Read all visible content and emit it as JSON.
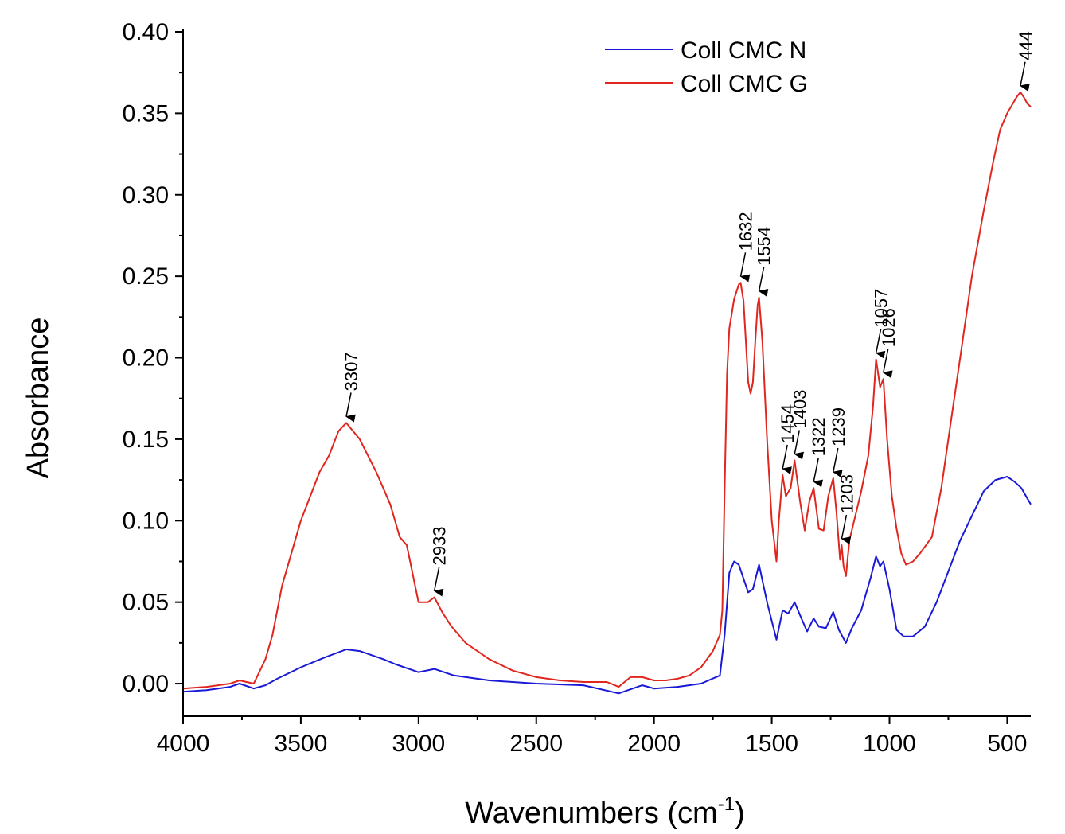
{
  "chart_data": {
    "type": "line",
    "title": "",
    "xlabel": "Wavenumbers (cm",
    "xlabel_sup": "-1",
    "xlabel_close": ")",
    "ylabel": "Absorbance",
    "xlim": [
      4000,
      400
    ],
    "ylim": [
      -0.02,
      0.4
    ],
    "x_reversed": true,
    "grid": false,
    "legend_position": "top-right",
    "x_ticks": [
      4000,
      3500,
      3000,
      2500,
      2000,
      1500,
      1000,
      500
    ],
    "x_tick_labels": [
      "4000",
      "3500",
      "3000",
      "2500",
      "2000",
      "1500",
      "1000",
      "500"
    ],
    "y_ticks": [
      0.0,
      0.05,
      0.1,
      0.15,
      0.2,
      0.25,
      0.3,
      0.35,
      0.4
    ],
    "y_tick_labels": [
      "0.00",
      "0.05",
      "0.10",
      "0.15",
      "0.20",
      "0.25",
      "0.30",
      "0.35",
      "0.40"
    ],
    "series": [
      {
        "name": "Coll CMC N",
        "color": "#1a1ad6",
        "x": [
          4000,
          3900,
          3800,
          3760,
          3700,
          3650,
          3600,
          3500,
          3400,
          3307,
          3250,
          3150,
          3100,
          3000,
          2933,
          2850,
          2700,
          2500,
          2300,
          2150,
          2050,
          2000,
          1900,
          1800,
          1720,
          1700,
          1680,
          1660,
          1640,
          1600,
          1580,
          1554,
          1520,
          1480,
          1454,
          1430,
          1403,
          1380,
          1350,
          1322,
          1300,
          1270,
          1239,
          1215,
          1185,
          1160,
          1120,
          1080,
          1057,
          1040,
          1026,
          1000,
          970,
          940,
          900,
          850,
          800,
          700,
          600,
          550,
          500,
          470,
          440,
          420,
          400
        ],
        "y": [
          -0.005,
          -0.004,
          -0.002,
          0.0,
          -0.003,
          -0.001,
          0.003,
          0.01,
          0.016,
          0.021,
          0.02,
          0.015,
          0.012,
          0.007,
          0.009,
          0.005,
          0.002,
          0.0,
          -0.001,
          -0.006,
          -0.001,
          -0.003,
          -0.002,
          0.0,
          0.005,
          0.03,
          0.068,
          0.075,
          0.073,
          0.056,
          0.058,
          0.073,
          0.05,
          0.027,
          0.045,
          0.043,
          0.05,
          0.042,
          0.032,
          0.04,
          0.035,
          0.034,
          0.044,
          0.033,
          0.025,
          0.034,
          0.045,
          0.065,
          0.078,
          0.072,
          0.075,
          0.058,
          0.033,
          0.029,
          0.029,
          0.035,
          0.05,
          0.088,
          0.118,
          0.125,
          0.127,
          0.124,
          0.12,
          0.115,
          0.11
        ]
      },
      {
        "name": "Coll CMC G",
        "color": "#e0261e",
        "x": [
          4000,
          3900,
          3800,
          3760,
          3700,
          3650,
          3620,
          3580,
          3500,
          3420,
          3380,
          3340,
          3307,
          3250,
          3180,
          3120,
          3080,
          3050,
          3000,
          2960,
          2933,
          2900,
          2860,
          2800,
          2700,
          2600,
          2500,
          2400,
          2300,
          2200,
          2150,
          2100,
          2050,
          2000,
          1950,
          1900,
          1850,
          1800,
          1750,
          1720,
          1710,
          1700,
          1690,
          1680,
          1660,
          1640,
          1632,
          1620,
          1600,
          1590,
          1580,
          1570,
          1560,
          1554,
          1540,
          1520,
          1500,
          1480,
          1470,
          1454,
          1440,
          1420,
          1403,
          1380,
          1360,
          1340,
          1322,
          1300,
          1280,
          1260,
          1239,
          1225,
          1210,
          1203,
          1195,
          1185,
          1170,
          1150,
          1120,
          1090,
          1070,
          1057,
          1040,
          1026,
          1010,
          990,
          970,
          950,
          930,
          900,
          870,
          820,
          780,
          740,
          700,
          650,
          600,
          560,
          530,
          500,
          480,
          460,
          444,
          430,
          415,
          400
        ],
        "y": [
          -0.003,
          -0.002,
          0.0,
          0.002,
          0.0,
          0.015,
          0.03,
          0.06,
          0.1,
          0.13,
          0.14,
          0.155,
          0.16,
          0.15,
          0.13,
          0.11,
          0.09,
          0.085,
          0.05,
          0.05,
          0.053,
          0.044,
          0.035,
          0.025,
          0.015,
          0.008,
          0.004,
          0.002,
          0.001,
          0.001,
          -0.002,
          0.004,
          0.004,
          0.002,
          0.002,
          0.003,
          0.005,
          0.01,
          0.02,
          0.03,
          0.045,
          0.12,
          0.19,
          0.218,
          0.236,
          0.245,
          0.246,
          0.235,
          0.185,
          0.178,
          0.185,
          0.21,
          0.232,
          0.237,
          0.21,
          0.15,
          0.1,
          0.075,
          0.1,
          0.128,
          0.115,
          0.12,
          0.137,
          0.112,
          0.094,
          0.112,
          0.12,
          0.095,
          0.094,
          0.115,
          0.126,
          0.105,
          0.076,
          0.085,
          0.072,
          0.066,
          0.088,
          0.1,
          0.118,
          0.14,
          0.17,
          0.199,
          0.182,
          0.187,
          0.15,
          0.115,
          0.095,
          0.08,
          0.073,
          0.075,
          0.08,
          0.09,
          0.12,
          0.16,
          0.2,
          0.25,
          0.29,
          0.32,
          0.34,
          0.35,
          0.355,
          0.36,
          0.363,
          0.36,
          0.356,
          0.354
        ]
      }
    ],
    "peak_annotations": [
      {
        "label": "3307",
        "x": 3307,
        "y": 0.16
      },
      {
        "label": "2933",
        "x": 2933,
        "y": 0.053
      },
      {
        "label": "1632",
        "x": 1632,
        "y": 0.246
      },
      {
        "label": "1554",
        "x": 1554,
        "y": 0.237
      },
      {
        "label": "1454",
        "x": 1454,
        "y": 0.128
      },
      {
        "label": "1403",
        "x": 1403,
        "y": 0.137
      },
      {
        "label": "1322",
        "x": 1322,
        "y": 0.12
      },
      {
        "label": "1239",
        "x": 1239,
        "y": 0.126
      },
      {
        "label": "1203",
        "x": 1203,
        "y": 0.085
      },
      {
        "label": "1057",
        "x": 1057,
        "y": 0.199
      },
      {
        "label": "1026",
        "x": 1026,
        "y": 0.187
      },
      {
        "label": "444",
        "x": 444,
        "y": 0.363
      }
    ]
  }
}
